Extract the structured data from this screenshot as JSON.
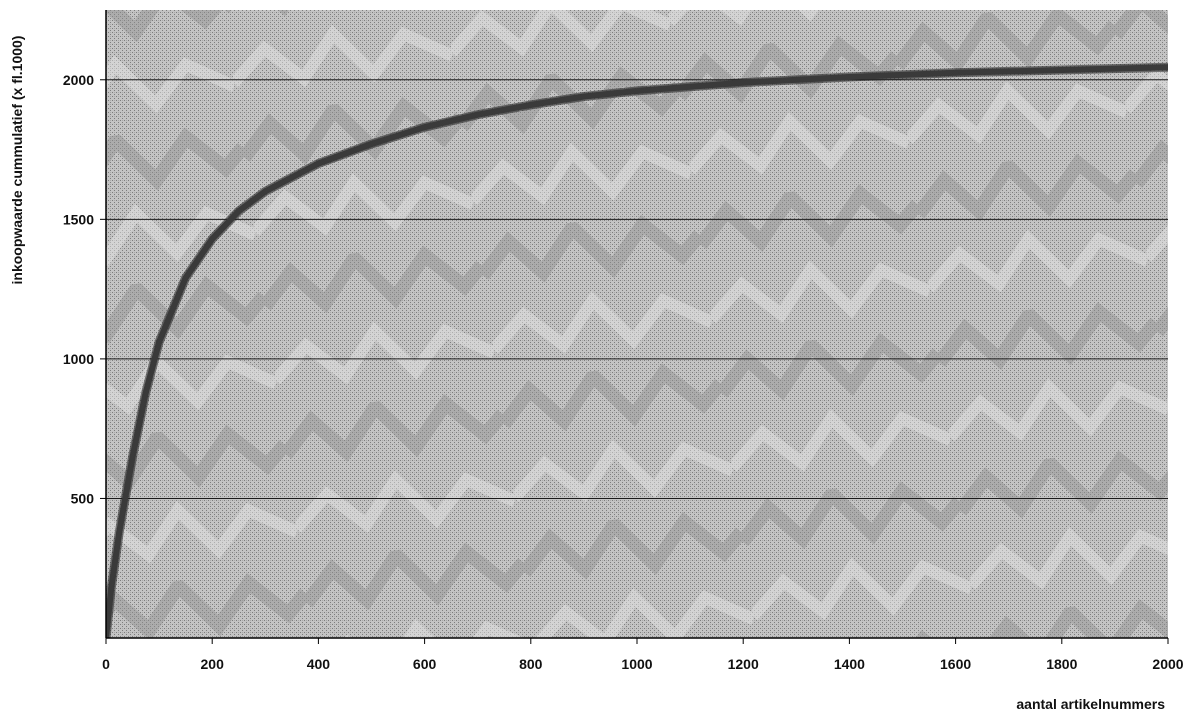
{
  "chart_data": {
    "type": "line",
    "title": "",
    "xlabel": "aantal artikelnummers",
    "ylabel": "inkoopwaarde cummulatief (x fl.1000)",
    "xlim": [
      0,
      2000
    ],
    "ylim": [
      0,
      2250
    ],
    "x_ticks": [
      0,
      200,
      400,
      600,
      800,
      1000,
      1200,
      1400,
      1600,
      1800,
      2000
    ],
    "y_ticks": [
      500,
      1000,
      1500,
      2000
    ],
    "grid": "horizontal",
    "legend": "none",
    "colors": {
      "line": "#3a3a3a",
      "background": "#b9b9b9",
      "gridline": "#1a1a1a"
    },
    "series": [
      {
        "x": [
          0,
          10,
          25,
          50,
          75,
          100,
          150,
          200,
          250,
          300,
          400,
          500,
          600,
          700,
          800,
          900,
          1000,
          1200,
          1400,
          1600,
          1800,
          2000
        ],
        "values": [
          0,
          180,
          380,
          650,
          880,
          1060,
          1290,
          1430,
          1530,
          1600,
          1700,
          1770,
          1830,
          1875,
          1910,
          1940,
          1960,
          1990,
          2010,
          2025,
          2035,
          2045
        ]
      }
    ]
  }
}
